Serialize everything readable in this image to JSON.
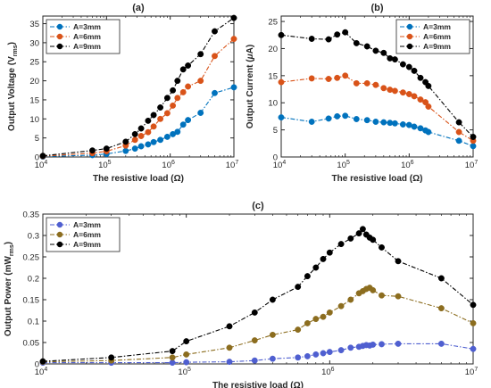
{
  "chart_data": [
    {
      "panel": "(a)",
      "type": "line",
      "xscale": "log",
      "xlim": [
        10000,
        10000000
      ],
      "ylim": [
        0,
        37
      ],
      "xticks": [
        10000,
        100000,
        1000000,
        10000000
      ],
      "xtick_labels": [
        [
          "10",
          "4"
        ],
        [
          "10",
          "5"
        ],
        [
          "10",
          "6"
        ],
        [
          "10",
          "7"
        ]
      ],
      "yticks": [
        0,
        5,
        10,
        15,
        20,
        25,
        30,
        35
      ],
      "xlabel": "The resistive load (Ω)",
      "ylabel": {
        "main": "Output Voltage (V",
        "sub": "rms",
        "close": ")"
      },
      "legend_position": "top-left",
      "series": [
        {
          "name": "A=3mm",
          "color": "#0072BD",
          "x": [
            10000,
            60000,
            100000,
            200000,
            280000,
            350000,
            450000,
            550000,
            700000,
            900000,
            1100000,
            1300000,
            1600000,
            1900000,
            3000000,
            5000000,
            10000000
          ],
          "y": [
            0.1,
            0.5,
            0.8,
            1.6,
            2.2,
            2.8,
            3.3,
            3.9,
            4.5,
            5.3,
            6.0,
            6.6,
            8.5,
            9.7,
            11.6,
            16.8,
            18.3
          ]
        },
        {
          "name": "A=6mm",
          "color": "#D95319",
          "x": [
            10000,
            60000,
            100000,
            200000,
            280000,
            350000,
            450000,
            550000,
            700000,
            900000,
            1100000,
            1300000,
            1600000,
            1900000,
            3000000,
            5000000,
            10000000
          ],
          "y": [
            0.2,
            1.0,
            1.5,
            3.0,
            4.5,
            5.5,
            6.5,
            8.0,
            10.0,
            11.5,
            13.5,
            15.5,
            17.0,
            18.5,
            20.0,
            26.5,
            31.0
          ]
        },
        {
          "name": "A=9mm",
          "color": "#000000",
          "x": [
            10000,
            60000,
            100000,
            200000,
            280000,
            350000,
            450000,
            550000,
            700000,
            900000,
            1100000,
            1300000,
            1600000,
            1900000,
            3000000,
            5000000,
            10000000
          ],
          "y": [
            0.3,
            1.7,
            2.2,
            4.0,
            6.0,
            7.5,
            9.5,
            11.0,
            13.0,
            15.5,
            17.5,
            20.0,
            23.0,
            24.0,
            27.0,
            33.0,
            36.5
          ]
        }
      ]
    },
    {
      "panel": "(b)",
      "type": "line",
      "xscale": "log",
      "xlim": [
        10000,
        10000000
      ],
      "ylim": [
        0,
        26
      ],
      "xticks": [
        10000,
        100000,
        1000000,
        10000000
      ],
      "xtick_labels": [
        [
          "10",
          "4"
        ],
        [
          "10",
          "5"
        ],
        [
          "10",
          "6"
        ],
        [
          "10",
          "7"
        ]
      ],
      "yticks": [
        0,
        5,
        10,
        15,
        20,
        25
      ],
      "xlabel": "The resistive load (Ω)",
      "ylabel": {
        "main": "Output Current (",
        "mu": "μ",
        "close": "A)"
      },
      "legend_position": "top-right",
      "series": [
        {
          "name": "A=3mm",
          "color": "#0072BD",
          "x": [
            10000,
            30000,
            55000,
            75000,
            100000,
            150000,
            220000,
            300000,
            400000,
            500000,
            600000,
            800000,
            1000000,
            1200000,
            1500000,
            1800000,
            2000000,
            6000000,
            10000000
          ],
          "y": [
            7.3,
            6.5,
            7.1,
            7.5,
            7.6,
            7.0,
            6.8,
            6.5,
            6.4,
            6.3,
            6.2,
            6.0,
            5.9,
            5.6,
            5.3,
            4.9,
            4.6,
            3.0,
            2.0
          ]
        },
        {
          "name": "A=6mm",
          "color": "#D95319",
          "x": [
            10000,
            30000,
            55000,
            75000,
            100000,
            150000,
            220000,
            300000,
            400000,
            500000,
            600000,
            800000,
            1000000,
            1200000,
            1500000,
            1800000,
            2000000,
            6000000,
            10000000
          ],
          "y": [
            13.8,
            14.5,
            14.4,
            14.6,
            15.0,
            13.6,
            13.6,
            13.3,
            12.7,
            12.4,
            12.2,
            11.9,
            11.6,
            11.2,
            10.6,
            10.1,
            9.3,
            4.6,
            3.0
          ]
        },
        {
          "name": "A=9mm",
          "color": "#000000",
          "x": [
            10000,
            30000,
            55000,
            75000,
            100000,
            150000,
            220000,
            300000,
            400000,
            500000,
            600000,
            800000,
            1000000,
            1200000,
            1500000,
            1800000,
            2000000,
            6000000,
            10000000
          ],
          "y": [
            22.5,
            21.8,
            21.7,
            22.6,
            23.0,
            21.0,
            20.4,
            19.6,
            19.2,
            18.2,
            18.0,
            17.1,
            16.6,
            15.9,
            14.6,
            13.8,
            13.1,
            6.4,
            3.7
          ]
        }
      ]
    },
    {
      "panel": "(c)",
      "type": "line",
      "xscale": "log",
      "xlim": [
        10000,
        10000000
      ],
      "ylim": [
        0,
        0.35
      ],
      "xticks": [
        10000,
        100000,
        1000000,
        10000000
      ],
      "xtick_labels": [
        [
          "10",
          "4"
        ],
        [
          "10",
          "5"
        ],
        [
          "10",
          "6"
        ],
        [
          "10",
          "7"
        ]
      ],
      "yticks": [
        0,
        0.05,
        0.1,
        0.15,
        0.2,
        0.25,
        0.3,
        0.35
      ],
      "ytick_labels": [
        "0",
        "0.05",
        "0.1",
        "0.15",
        "0.2",
        "0.25",
        "0.3",
        "0.35"
      ],
      "xlabel": "The resistive load (Ω)",
      "ylabel": {
        "main": "Output Power (mW",
        "sub": "rms",
        "close": ")"
      },
      "legend_position": "top-left",
      "series": [
        {
          "name": "A=3mm",
          "color": "#4F5FD0",
          "x": [
            10000,
            30000,
            80000,
            100000,
            200000,
            300000,
            400000,
            600000,
            700000,
            800000,
            900000,
            1000000,
            1200000,
            1400000,
            1600000,
            1700000,
            1800000,
            1900000,
            2000000,
            2300000,
            3000000,
            6000000,
            10000000
          ],
          "y": [
            0.003,
            0.003,
            0.003,
            0.004,
            0.005,
            0.008,
            0.012,
            0.015,
            0.018,
            0.022,
            0.025,
            0.028,
            0.032,
            0.038,
            0.04,
            0.042,
            0.044,
            0.043,
            0.045,
            0.046,
            0.047,
            0.047,
            0.035
          ]
        },
        {
          "name": "A=6mm",
          "color": "#8C6D1F",
          "x": [
            10000,
            30000,
            80000,
            100000,
            200000,
            300000,
            400000,
            600000,
            700000,
            800000,
            900000,
            1000000,
            1200000,
            1400000,
            1600000,
            1700000,
            1800000,
            1900000,
            2000000,
            2300000,
            3000000,
            6000000,
            10000000
          ],
          "y": [
            0.005,
            0.008,
            0.015,
            0.022,
            0.038,
            0.055,
            0.068,
            0.08,
            0.095,
            0.105,
            0.11,
            0.12,
            0.135,
            0.15,
            0.165,
            0.17,
            0.175,
            0.178,
            0.172,
            0.16,
            0.158,
            0.13,
            0.095
          ]
        },
        {
          "name": "A=9mm",
          "color": "#000000",
          "x": [
            10000,
            30000,
            80000,
            100000,
            200000,
            300000,
            400000,
            600000,
            700000,
            800000,
            900000,
            1000000,
            1200000,
            1400000,
            1600000,
            1700000,
            1800000,
            1900000,
            2000000,
            2300000,
            3000000,
            6000000,
            10000000
          ],
          "y": [
            0.006,
            0.015,
            0.03,
            0.053,
            0.088,
            0.12,
            0.15,
            0.18,
            0.205,
            0.225,
            0.245,
            0.26,
            0.28,
            0.293,
            0.305,
            0.315,
            0.302,
            0.295,
            0.29,
            0.272,
            0.24,
            0.2,
            0.138
          ]
        }
      ]
    }
  ]
}
